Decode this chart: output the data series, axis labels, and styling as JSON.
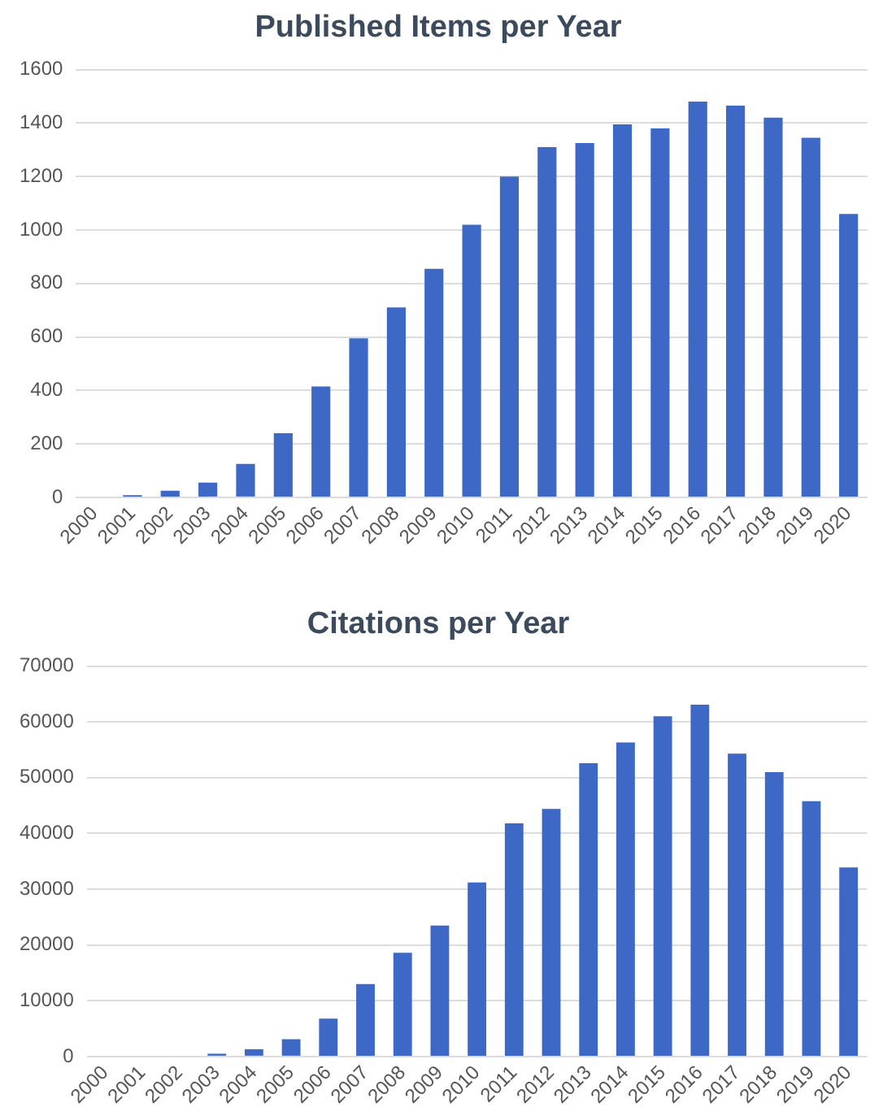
{
  "chart_data": [
    {
      "type": "bar",
      "title": "Published Items per Year",
      "categories": [
        "2000",
        "2001",
        "2002",
        "2003",
        "2004",
        "2005",
        "2006",
        "2007",
        "2008",
        "2009",
        "2010",
        "2011",
        "2012",
        "2013",
        "2014",
        "2015",
        "2016",
        "2017",
        "2018",
        "2019",
        "2020"
      ],
      "values": [
        0,
        8,
        25,
        55,
        125,
        240,
        415,
        595,
        710,
        855,
        1020,
        1200,
        1310,
        1325,
        1395,
        1380,
        1480,
        1465,
        1420,
        1345,
        1060
      ],
      "color": "#3d68c6",
      "ylim": [
        0,
        1600
      ],
      "yticks": [
        0,
        200,
        400,
        600,
        800,
        1000,
        1200,
        1400,
        1600
      ],
      "grid": "y",
      "legend": false
    },
    {
      "type": "bar",
      "title": "Citations per Year",
      "categories": [
        "2000",
        "2001",
        "2002",
        "2003",
        "2004",
        "2005",
        "2006",
        "2007",
        "2008",
        "2009",
        "2010",
        "2011",
        "2012",
        "2013",
        "2014",
        "2015",
        "2016",
        "2017",
        "2018",
        "2019",
        "2020"
      ],
      "values": [
        0,
        0,
        0,
        500,
        1300,
        3100,
        6800,
        13000,
        18600,
        23500,
        31200,
        41800,
        44400,
        52600,
        56300,
        61000,
        63100,
        54300,
        51000,
        45800,
        33900
      ],
      "color": "#3d68c6",
      "ylim": [
        0,
        70000
      ],
      "yticks": [
        0,
        10000,
        20000,
        30000,
        40000,
        50000,
        60000,
        70000
      ],
      "grid": "y",
      "legend": false
    }
  ]
}
